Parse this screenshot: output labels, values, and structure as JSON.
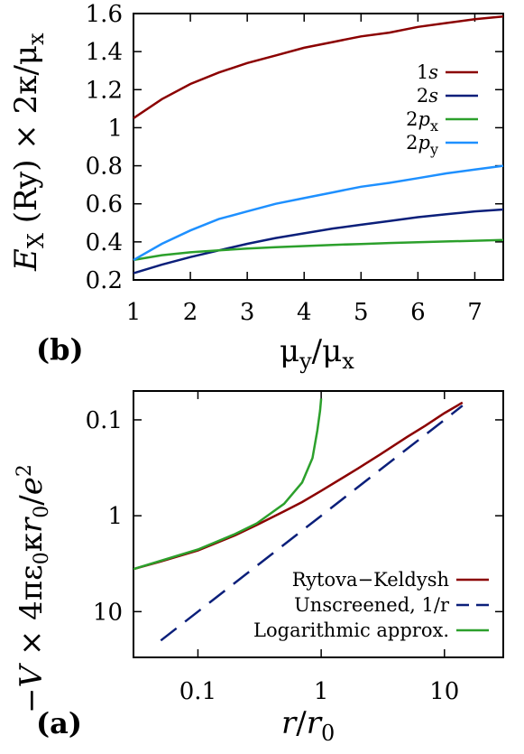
{
  "chart_data": [
    {
      "type": "line",
      "panel_label": "(b)",
      "xlabel_parts": {
        "mu1": "μ",
        "sub1": "y",
        "slash": "/μ",
        "sub2": "x"
      },
      "ylabel_parts": {
        "E": "E",
        "sub": "X",
        "rest": " (Ry) × 2κ/μ",
        "sub2": "x"
      },
      "xlim": [
        1,
        7.5
      ],
      "ylim": [
        0.2,
        1.6
      ],
      "x_ticks": [
        1,
        2,
        3,
        4,
        5,
        6,
        7
      ],
      "y_ticks": [
        0.2,
        0.4,
        0.6,
        0.8,
        1,
        1.2,
        1.4,
        1.6
      ],
      "legend_position": "right",
      "series": [
        {
          "name": "1s",
          "name_num": "1",
          "name_it": "s",
          "name_sub": "",
          "color": "#8b0000",
          "x": [
            1,
            1.5,
            2,
            2.5,
            3,
            3.5,
            4,
            4.5,
            5,
            5.5,
            6,
            6.5,
            7,
            7.5
          ],
          "y": [
            1.05,
            1.15,
            1.23,
            1.29,
            1.34,
            1.38,
            1.42,
            1.45,
            1.48,
            1.5,
            1.53,
            1.55,
            1.57,
            1.585
          ]
        },
        {
          "name": "2s",
          "name_num": "2",
          "name_it": "s",
          "name_sub": "",
          "color": "#0b1f7a",
          "x": [
            1,
            1.5,
            2,
            2.5,
            3,
            3.5,
            4,
            4.5,
            5,
            5.5,
            6,
            6.5,
            7,
            7.5
          ],
          "y": [
            0.235,
            0.28,
            0.32,
            0.355,
            0.39,
            0.42,
            0.445,
            0.47,
            0.49,
            0.51,
            0.53,
            0.545,
            0.56,
            0.57
          ]
        },
        {
          "name": "2px",
          "name_num": "2",
          "name_it": "p",
          "name_sub": "x",
          "color": "#2ca02c",
          "x": [
            1,
            1.5,
            2,
            2.5,
            3,
            3.5,
            4,
            4.5,
            5,
            5.5,
            6,
            6.5,
            7,
            7.5
          ],
          "y": [
            0.305,
            0.33,
            0.345,
            0.355,
            0.365,
            0.372,
            0.378,
            0.384,
            0.389,
            0.394,
            0.398,
            0.402,
            0.406,
            0.41
          ]
        },
        {
          "name": "2py",
          "name_num": "2",
          "name_it": "p",
          "name_sub": "y",
          "color": "#1e90ff",
          "x": [
            1,
            1.5,
            2,
            2.5,
            3,
            3.5,
            4,
            4.5,
            5,
            5.5,
            6,
            6.5,
            7,
            7.5
          ],
          "y": [
            0.305,
            0.39,
            0.46,
            0.52,
            0.56,
            0.6,
            0.63,
            0.66,
            0.69,
            0.71,
            0.735,
            0.76,
            0.78,
            0.8
          ]
        }
      ]
    },
    {
      "type": "line",
      "panel_label": "(a)",
      "xlabel_parts": {
        "r": "r",
        "slash": "/",
        "r0": "r",
        "sub": "0"
      },
      "ylabel_parts": {
        "pre": "−",
        "V": "V",
        "mid": " × 4πε",
        "sub0": "0",
        "kr": "κ",
        "r": "r",
        "sub1": "0",
        "slash": "/",
        "e": "e",
        "sup": "2"
      },
      "x_scale": "log",
      "y_scale": "log",
      "y_inverted": true,
      "xlim": [
        0.03,
        30
      ],
      "ylim_tick_values": [
        0.05,
        30
      ],
      "x_ticks": [
        0.1,
        1,
        10
      ],
      "x_tick_labels": [
        "0.1",
        "1",
        "10"
      ],
      "y_ticks": [
        0.1,
        1,
        10
      ],
      "y_tick_labels": [
        "0.1",
        "1",
        "10"
      ],
      "legend_position": "bottom-right",
      "series": [
        {
          "name": "Rytova−Keldysh",
          "color": "#8b0000",
          "dash": "none",
          "x": [
            0.03,
            0.05,
            0.1,
            0.2,
            0.3,
            0.5,
            0.7,
            1,
            2,
            3,
            5,
            7,
            10,
            14
          ],
          "y": [
            3.6,
            3.0,
            2.3,
            1.6,
            1.25,
            0.9,
            0.72,
            0.55,
            0.32,
            0.23,
            0.15,
            0.115,
            0.085,
            0.066
          ]
        },
        {
          "name": "Unscreened, 1/r",
          "color": "#0b1f7a",
          "dash": "22,12",
          "x": [
            0.05,
            0.1,
            0.3,
            1,
            3,
            10,
            14
          ],
          "y": [
            20,
            10,
            3.33,
            1,
            0.333,
            0.1,
            0.071
          ]
        },
        {
          "name": "Logarithmic approx.",
          "color": "#2ca02c",
          "dash": "none",
          "x": [
            0.03,
            0.05,
            0.1,
            0.2,
            0.3,
            0.5,
            0.7,
            0.85,
            0.93,
            0.98,
            1.0
          ],
          "y": [
            3.6,
            2.95,
            2.25,
            1.55,
            1.2,
            0.75,
            0.45,
            0.25,
            0.13,
            0.08,
            0.06
          ]
        }
      ]
    }
  ]
}
